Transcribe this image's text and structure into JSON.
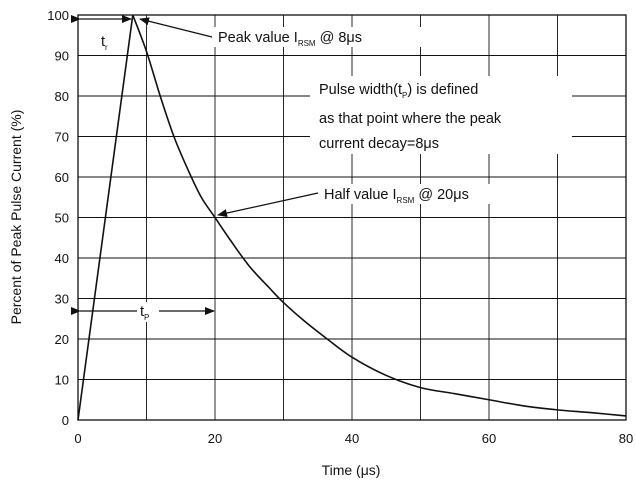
{
  "chart_data": {
    "type": "line",
    "xlabel": "Time (μs)",
    "ylabel": "Percent of Peak Pulse Current (%)",
    "xlim": [
      0,
      80
    ],
    "ylim": [
      0,
      100
    ],
    "x_ticks": [
      "0",
      "20",
      "40",
      "60",
      "80"
    ],
    "y_ticks": [
      "0",
      "10",
      "20",
      "30",
      "40",
      "50",
      "60",
      "70",
      "80",
      "90",
      "100"
    ],
    "grid": true,
    "series": [
      {
        "x": [
          0,
          8,
          10,
          12,
          14,
          16,
          18,
          20,
          22,
          25,
          28,
          30,
          33,
          36,
          40,
          45,
          50,
          55,
          60,
          65,
          70,
          75,
          80
        ],
        "y": [
          0,
          100,
          91,
          80,
          70,
          62,
          55,
          50,
          45,
          38,
          32.5,
          29,
          24.5,
          20.5,
          15.5,
          11,
          8,
          6.5,
          5,
          3.5,
          2.5,
          1.8,
          1
        ]
      }
    ],
    "annotations": {
      "tr": {
        "main": "t",
        "sub": "r"
      },
      "tp": {
        "main": "t",
        "sub": "P"
      },
      "peak": {
        "pre": "Peak value I",
        "sub": "RSM",
        "post": " @ 8μs"
      },
      "pulse_width": {
        "line1_pre": "Pulse width(t",
        "line1_sub": "P",
        "line1_post": ") is defined",
        "line2": "as that point where the peak",
        "line3": "current decay=8μs"
      },
      "half": {
        "pre": "Half  value I",
        "sub": "RSM",
        "post": " @ 20μs"
      }
    }
  }
}
